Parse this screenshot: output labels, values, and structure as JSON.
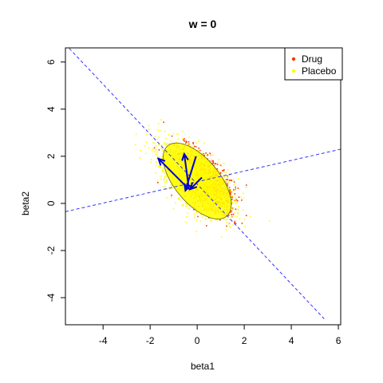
{
  "chart_data": {
    "type": "scatter",
    "title": "w =  0",
    "xlabel": "beta1",
    "ylabel": "beta2",
    "xlim": [
      -5.6,
      6.1
    ],
    "ylim": [
      -5.15,
      6.6
    ],
    "xticks": [
      -4,
      -2,
      0,
      2,
      4,
      6
    ],
    "yticks": [
      -4,
      -2,
      0,
      2,
      4,
      6
    ],
    "xtick_labels": [
      "-4",
      "-2",
      "0",
      "2",
      "4",
      "6"
    ],
    "ytick_labels": [
      "-4",
      "-2",
      "0",
      "2",
      "4",
      "6"
    ],
    "grid": false,
    "legend": {
      "placement": "top-right",
      "entries": [
        {
          "label": "Drug",
          "color": "#ff3300"
        },
        {
          "label": "Placebo",
          "color": "#ffff00"
        }
      ]
    },
    "series": [
      {
        "name": "Drug",
        "color": "#ff3300",
        "cloud": {
          "center": [
            0.3,
            0.95
          ],
          "sd_major": 0.75,
          "sd_minor": 0.38,
          "angle_deg": -52,
          "n": 1700
        }
      },
      {
        "name": "Placebo",
        "color": "#ffff00",
        "cloud": {
          "center": [
            -0.05,
            1.0
          ],
          "sd_major": 0.95,
          "sd_minor": 0.45,
          "angle_deg": -45,
          "n": 1700
        }
      }
    ],
    "ellipse": {
      "center": [
        0.0,
        0.95
      ],
      "semi_major": 1.95,
      "semi_minor": 0.95,
      "angle_deg": -50,
      "fill": "#ffff00",
      "stroke": "#666600"
    },
    "dashed_lines": [
      {
        "points": [
          [
            -5.6,
            6.75
          ],
          [
            5.4,
            -4.9
          ]
        ],
        "color": "#3333ff"
      },
      {
        "points": [
          [
            -5.6,
            -0.35
          ],
          [
            6.1,
            2.3
          ]
        ],
        "color": "#3333ff"
      }
    ],
    "arrows": [
      {
        "from": [
          -0.35,
          0.6
        ],
        "to": [
          -1.65,
          1.9
        ],
        "color": "#0000cc"
      },
      {
        "from": [
          -0.35,
          0.6
        ],
        "to": [
          -0.55,
          2.1
        ],
        "color": "#0000cc"
      },
      {
        "from": [
          -0.05,
          2.0
        ],
        "to": [
          -0.5,
          0.55
        ],
        "color": "#0000cc"
      },
      {
        "from": [
          0.2,
          1.1
        ],
        "to": [
          -0.3,
          0.6
        ],
        "color": "#0000cc"
      }
    ]
  }
}
